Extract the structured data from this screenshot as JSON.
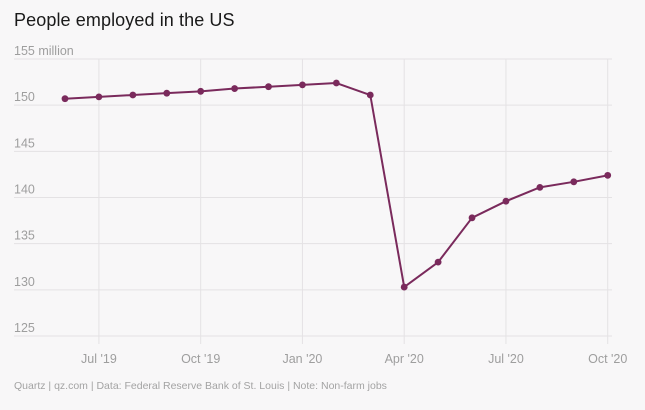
{
  "header": {
    "title": "People employed in the US"
  },
  "footer": {
    "source": "Quartz | qz.com | Data: Federal Reserve Bank of St. Louis | Note: Non-farm jobs"
  },
  "chart_data": {
    "type": "line",
    "title": "People employed in the US",
    "ylabel": "",
    "xlabel": "",
    "ylim": [
      125,
      155
    ],
    "yticks": [
      {
        "value": 125,
        "label": "125"
      },
      {
        "value": 130,
        "label": "130"
      },
      {
        "value": 135,
        "label": "135"
      },
      {
        "value": 140,
        "label": "140"
      },
      {
        "value": 145,
        "label": "145"
      },
      {
        "value": 150,
        "label": "150"
      },
      {
        "value": 155,
        "label": "155 million"
      }
    ],
    "xticks": [
      {
        "date": "2019-07",
        "label": "Jul '19"
      },
      {
        "date": "2019-10",
        "label": "Oct '19"
      },
      {
        "date": "2020-01",
        "label": "Jan '20"
      },
      {
        "date": "2020-04",
        "label": "Apr '20"
      },
      {
        "date": "2020-07",
        "label": "Jul '20"
      },
      {
        "date": "2020-10",
        "label": "Oct '20"
      }
    ],
    "grid": true,
    "line_color": "#7a2a5c",
    "series": [
      {
        "x": [
          "2019-06",
          "2019-07",
          "2019-08",
          "2019-09",
          "2019-10",
          "2019-11",
          "2019-12",
          "2020-01",
          "2020-02",
          "2020-03",
          "2020-04",
          "2020-05",
          "2020-06",
          "2020-07",
          "2020-08",
          "2020-09",
          "2020-10"
        ],
        "values": [
          150.7,
          150.9,
          151.1,
          151.3,
          151.5,
          151.8,
          152.0,
          152.2,
          152.4,
          151.1,
          130.3,
          133.0,
          137.8,
          139.6,
          141.1,
          141.7,
          142.4
        ]
      }
    ]
  }
}
